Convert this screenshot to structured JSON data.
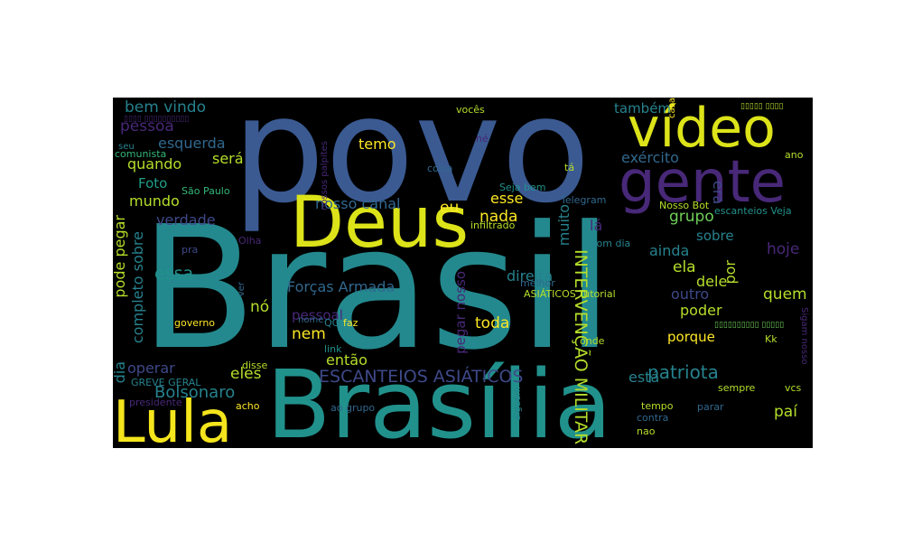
{
  "words": {
    "povo": "povo",
    "brasil": "Brasil",
    "brasilia": "Brasília",
    "deus": "Deus",
    "gente": "gente",
    "video": "vídeo",
    "lula": "Lula",
    "intervencao_militar": "INTERVENÇÃO MILITAR",
    "escanteios_asiaticos": "ESCANTEIOS ASIÁTICOS",
    "patriota": "patriota",
    "bolsonaro": "Bolsonaro",
    "forcas_armada": "Forças Armada",
    "nosso_canal": "nosso canal",
    "exercito": "exército",
    "esquerda": "esquerda",
    "pessoa": "pessoa",
    "bem_vindo": "bem vindo",
    "temo": "temo",
    "quando": "quando",
    "sera": "será",
    "foto": "Foto",
    "mundo": "mundo",
    "verdade": "verdade",
    "pode_pegar": "pode pegar",
    "completo_sobre": "completo sobre",
    "essa": "essa",
    "no": "nó",
    "dia": "dia",
    "operar": "operar",
    "eles": "eles",
    "entao": "então",
    "nem": "nem",
    "pessoal": "pessoal",
    "toda": "toda",
    "pegar_nosso": "pegar nosso",
    "direita": "direita",
    "nada": "nada",
    "esse": "esse",
    "eu": "eu",
    "muito": "muito",
    "la": "lá",
    "grupo": "grupo",
    "tambem": "também",
    "era": "era",
    "sobre": "sobre",
    "ainda": "ainda",
    "ela": "ela",
    "dele": "dele",
    "por": "por",
    "hoje": "hoje",
    "outro": "outro",
    "quem": "quem",
    "poder": "poder",
    "porque": "porque",
    "esta": "está",
    "pai": "paí",
    "governo": "governo",
    "sao_paulo": "São Paulo",
    "comunista": "comunista",
    "seu": "seu",
    "voces": "vocês",
    "nosso_bot": "Nosso Bot",
    "escanteios_veja": "escanteios Veja",
    "telegram": "Telegram",
    "seja_bem": "Seja bem",
    "coisa": "coisa",
    "ta": "tá",
    "ne": "né",
    "ano": "ano",
    "casa": "casa",
    "infiltrado": "infiltrado",
    "bom_dia": "Bom dia",
    "melhor": "melhor",
    "asiaticos_tutorial": "ASIÁTICOS Tutorial",
    "olha": "Olha",
    "pra": "pra",
    "ver": "ver",
    "qg": "QG",
    "faz": "faz",
    "nome": "nome",
    "link": "link",
    "disse": "disse",
    "onde": "onde",
    "kk": "Kk",
    "sigam_nosso": "Sigam nosso",
    "greve_geral": "GREVE GERAL",
    "presidente": "presidente",
    "acho": "acho",
    "ao_grupo": "ao grupo",
    "alguem": "alguém",
    "tempo": "tempo",
    "contra": "contra",
    "parar": "parar",
    "nao": "nao",
    "sempre": "sempre",
    "vcs": "vcs",
    "nossos_palpites": "nossos palpites",
    "glyph_a": "▯▯▯▯▯ ▯▯▯▯",
    "glyph_b": "▯▯▯▯ ▯▯▯▯▯▯▯▯▯▯",
    "glyph_c": "▯▯▯▯▯▯▯▯▯▯ ▯▯▯▯▯"
  },
  "colors": {
    "background": "#000000",
    "page": "#ffffff",
    "palette": [
      "#440154",
      "#482878",
      "#3e4989",
      "#31688e",
      "#26828e",
      "#1f9e89",
      "#35b779",
      "#6ece58",
      "#b5de2b",
      "#fde725"
    ]
  }
}
